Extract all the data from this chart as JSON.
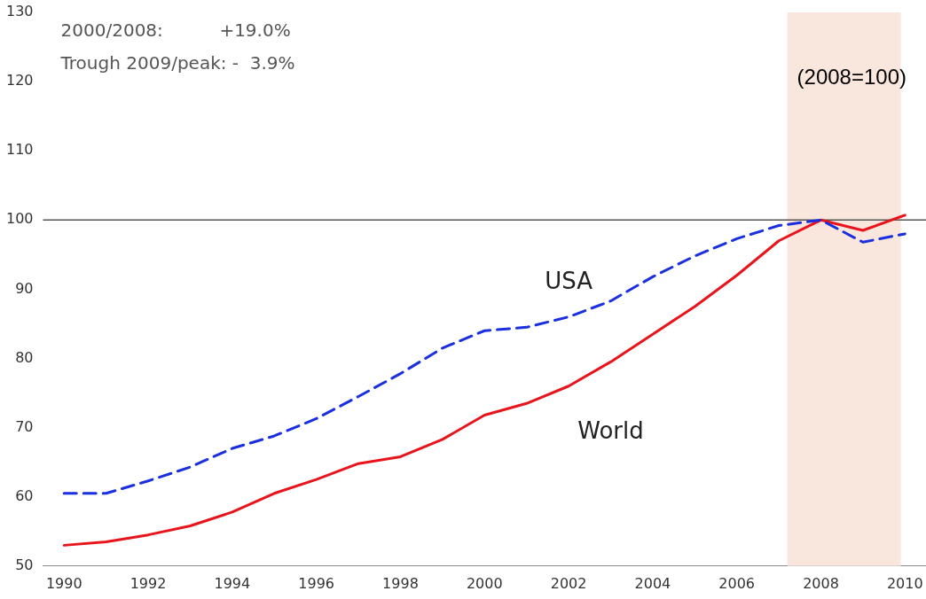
{
  "chart_data": {
    "type": "line",
    "x": [
      1990,
      1991,
      1992,
      1993,
      1994,
      1995,
      1996,
      1997,
      1998,
      1999,
      2000,
      2001,
      2002,
      2003,
      2004,
      2005,
      2006,
      2007,
      2008,
      2009,
      2010
    ],
    "series": [
      {
        "name": "USA",
        "color": "#1a2fe0",
        "line_style": "dashed",
        "values": [
          60.5,
          60.5,
          62.3,
          64.3,
          67,
          68.8,
          71.3,
          74.5,
          77.8,
          81.5,
          84,
          84.5,
          86,
          88.3,
          91.8,
          94.8,
          97.3,
          99.2,
          100,
          96.8,
          98
        ]
      },
      {
        "name": "World",
        "color": "#e8141c",
        "line_style": "solid",
        "values": [
          53,
          53.5,
          54.5,
          55.8,
          57.8,
          60.5,
          62.5,
          64.8,
          65.8,
          68.3,
          71.8,
          73.5,
          76,
          79.5,
          83.5,
          87.5,
          92,
          97,
          100,
          98.5,
          100.7
        ]
      }
    ],
    "xlim": [
      1989.5,
      2010.5
    ],
    "xticks": [
      1990,
      1992,
      1994,
      1996,
      1998,
      2000,
      2002,
      2004,
      2006,
      2008,
      2010
    ],
    "ylim": [
      50,
      130
    ],
    "yticks": [
      50,
      60,
      70,
      80,
      90,
      100,
      110,
      120,
      130
    ],
    "grid": false,
    "legend": false,
    "marker": "none",
    "ref_lines": [
      {
        "axis": "y",
        "value": 100,
        "color": "#555555"
      }
    ],
    "bands": [
      {
        "axis": "x",
        "from": 2007.2,
        "to": 2009.9,
        "color": "#f9e6dc"
      }
    ],
    "annotations": [
      "2000/2008:          +19.0%",
      "Trough 2009/peak: -  3.9%",
      "(2008=100)"
    ]
  }
}
